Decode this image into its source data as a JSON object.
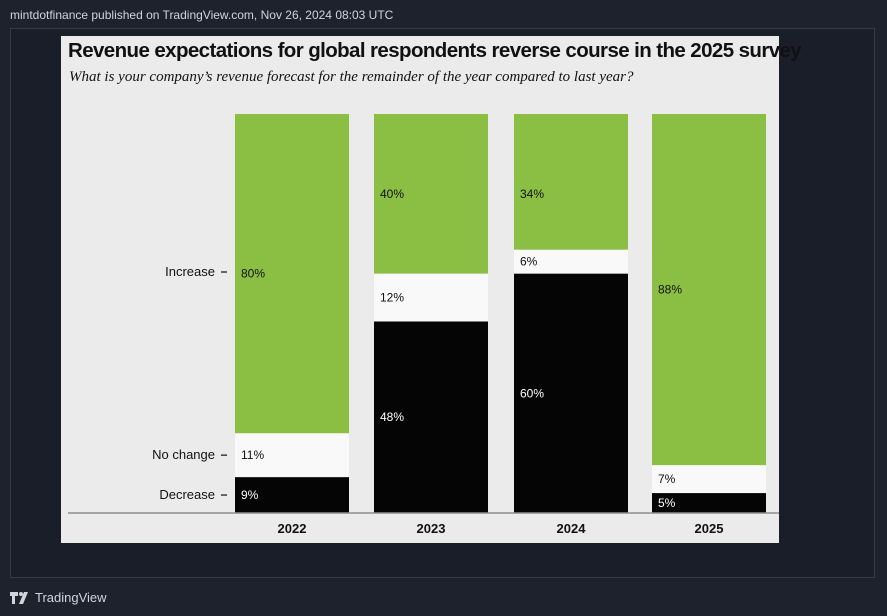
{
  "header": {
    "publisher_line": "mintdotfinance published on TradingView.com, Nov 26, 2024 08:03 UTC"
  },
  "footer": {
    "brand": "TradingView",
    "logo_icon": "tradingview-logo-icon"
  },
  "colors": {
    "increase": "#8abf44",
    "no_change": "#f9f9f9",
    "decrease": "#050505",
    "card_bg": "#ebebec",
    "page_bg": "#1e222d"
  },
  "chart_data": {
    "type": "bar",
    "stacked": true,
    "title": "Revenue expectations for global respondents reverse course in the 2025 survey",
    "subtitle": "What is your company’s revenue forecast for the remainder of the year compared to last year?",
    "categories": [
      "2022",
      "2023",
      "2024",
      "2025"
    ],
    "series": [
      {
        "name": "Decrease",
        "values": [
          9,
          48,
          60,
          5
        ],
        "labels": [
          "9%",
          "48%",
          "60%",
          "5%"
        ]
      },
      {
        "name": "No change",
        "values": [
          11,
          12,
          6,
          7
        ],
        "labels": [
          "11%",
          "12%",
          "6%",
          "7%"
        ]
      },
      {
        "name": "Increase",
        "values": [
          80,
          40,
          34,
          88
        ],
        "labels": [
          "80%",
          "40%",
          "34%",
          "88%"
        ]
      }
    ],
    "y_axis_labels": [
      "Increase",
      "No change",
      "Decrease"
    ],
    "ylim": [
      0,
      100
    ]
  }
}
